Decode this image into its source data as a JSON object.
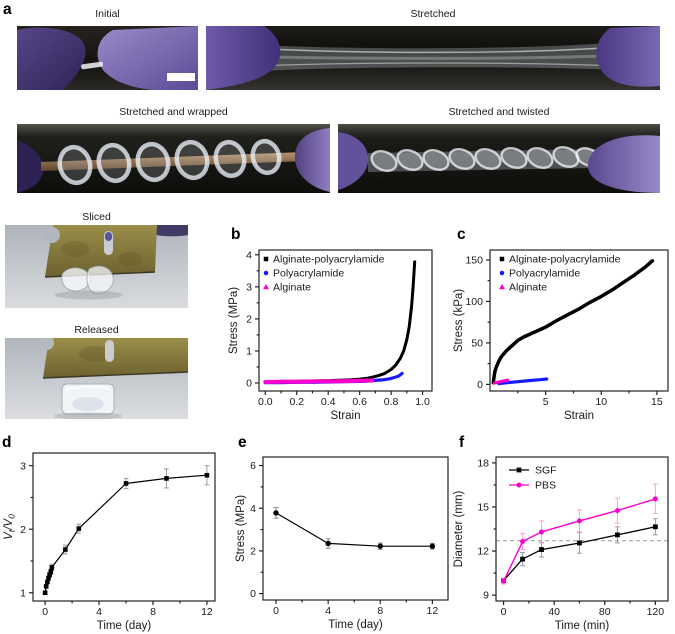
{
  "figure": {
    "panels": {
      "a": "a",
      "b": "b",
      "c": "c",
      "d": "d",
      "e": "e",
      "f": "f"
    },
    "captions": {
      "initial": "Initial",
      "stretched": "Stretched",
      "wrapped": "Stretched and wrapped",
      "twisted": "Stretched and twisted",
      "sliced": "Sliced",
      "released": "Released"
    }
  },
  "colors": {
    "series_black": "#000000",
    "series_blue": "#1a1aff",
    "series_magenta": "#ff00cc",
    "error_gray": "#999999",
    "error_pink": "#ff9ae8",
    "glove_purple": "#6a55a0",
    "refline_gray": "#9a9a9a"
  },
  "chart_data": [
    {
      "panel": "b",
      "type": "line",
      "xlabel": "Strain",
      "ylabel": "Stress (MPa)",
      "xlim": [
        -0.04,
        1.06
      ],
      "ylim": [
        -0.25,
        4.15
      ],
      "xticks": [
        0,
        0.2,
        0.4,
        0.6,
        0.8,
        1.0
      ],
      "xticklabels": [
        "0.0",
        "0.2",
        "0.4",
        "0.6",
        "0.8",
        "1.0"
      ],
      "yticks": [
        0,
        1,
        2,
        3,
        4
      ],
      "xminor": [
        0.1,
        0.3,
        0.5,
        0.7,
        0.9
      ],
      "yminor": [
        0.5,
        1.5,
        2.5,
        3.5
      ],
      "legend": {
        "x": 7,
        "y": 9,
        "style": "marker",
        "dy": 14
      },
      "series": [
        {
          "name": "Alginate-polyacrylamide",
          "color": "#000000",
          "marker": "square",
          "msize": 0,
          "lsize": 4.5,
          "width": 3,
          "x": [
            0,
            0.05,
            0.1,
            0.15,
            0.2,
            0.25,
            0.3,
            0.35,
            0.4,
            0.45,
            0.5,
            0.55,
            0.6,
            0.65,
            0.68,
            0.72,
            0.76,
            0.8,
            0.83,
            0.86,
            0.88,
            0.9,
            0.915,
            0.93,
            0.94,
            0.95
          ],
          "y": [
            0.04,
            0.04,
            0.05,
            0.05,
            0.05,
            0.06,
            0.06,
            0.07,
            0.07,
            0.08,
            0.09,
            0.1,
            0.12,
            0.15,
            0.18,
            0.23,
            0.3,
            0.42,
            0.56,
            0.78,
            1.0,
            1.35,
            1.75,
            2.4,
            3.0,
            3.78
          ]
        },
        {
          "name": "Polyacrylamide",
          "color": "#1a1aff",
          "marker": "circle",
          "msize": 0,
          "lsize": 4.5,
          "width": 3.2,
          "x": [
            0,
            0.1,
            0.2,
            0.3,
            0.4,
            0.5,
            0.6,
            0.65,
            0.7,
            0.75,
            0.79,
            0.82,
            0.845,
            0.86,
            0.87
          ],
          "y": [
            0.01,
            0.01,
            0.02,
            0.02,
            0.03,
            0.04,
            0.05,
            0.06,
            0.08,
            0.1,
            0.13,
            0.17,
            0.21,
            0.26,
            0.3
          ]
        },
        {
          "name": "Alginate",
          "color": "#ff00cc",
          "marker": "triangle",
          "msize": 0,
          "lsize": 5,
          "width": 4,
          "x": [
            0,
            0.1,
            0.2,
            0.3,
            0.4,
            0.5,
            0.6,
            0.68
          ],
          "y": [
            0.03,
            0.04,
            0.04,
            0.05,
            0.05,
            0.06,
            0.07,
            0.08
          ]
        }
      ]
    },
    {
      "panel": "c",
      "type": "line",
      "xlabel": "Strain",
      "ylabel": "Stress (kPa)",
      "xlim": [
        0,
        16
      ],
      "ylim": [
        -8,
        162
      ],
      "xticks": [
        5,
        10,
        15
      ],
      "yticks": [
        0,
        50,
        100,
        150
      ],
      "xminor": [
        2.5,
        7.5,
        12.5
      ],
      "yminor": [
        25,
        75,
        125
      ],
      "legend": {
        "x": 12,
        "y": 9,
        "style": "marker",
        "dy": 14
      },
      "series": [
        {
          "name": "Alginate-polyacrylamide",
          "color": "#000000",
          "marker": "square",
          "msize": 0,
          "lsize": 4.5,
          "width": 3.5,
          "x": [
            0.3,
            0.35,
            0.45,
            0.6,
            0.8,
            1,
            1.5,
            2,
            2.5,
            3,
            3.5,
            4,
            4.5,
            5,
            6,
            7,
            8,
            9,
            10,
            11,
            12,
            13,
            14,
            14.6
          ],
          "y": [
            2,
            8,
            16,
            22,
            28,
            33,
            41,
            47,
            53,
            57,
            60,
            63,
            66,
            69,
            77,
            84,
            91,
            99,
            106,
            114,
            123,
            132,
            142,
            149
          ]
        },
        {
          "name": "Polyacrylamide",
          "color": "#1a1aff",
          "marker": "circle",
          "msize": 0,
          "lsize": 4.5,
          "width": 3.2,
          "x": [
            0.8,
            1.5,
            2.5,
            3.5,
            4.5,
            5.1
          ],
          "y": [
            0.8,
            2,
            3.2,
            4.5,
            5.6,
            6.5
          ]
        },
        {
          "name": "Alginate",
          "color": "#ff00cc",
          "marker": "triangle",
          "msize": 0,
          "lsize": 5,
          "width": 3,
          "x": [
            0.4,
            0.8,
            1.2,
            1.6
          ],
          "y": [
            1.5,
            2.8,
            4,
            5.2
          ]
        }
      ]
    },
    {
      "panel": "d",
      "type": "line",
      "xlabel": "Time (day)",
      "ylabel": "V_t/V_0",
      "ylabel_style": "italic",
      "xlim": [
        -0.9,
        12.6
      ],
      "ylim": [
        0.87,
        3.2
      ],
      "xticks": [
        0,
        4,
        8,
        12
      ],
      "yticks": [
        1,
        2,
        3
      ],
      "xminor": [
        2,
        6,
        10
      ],
      "yminor": [
        1.5,
        2.5
      ],
      "series": [
        {
          "name": "",
          "color": "#000000",
          "marker": "square",
          "msize": 4.6,
          "width": 1.2,
          "err_color": "#9a9a9a",
          "x": [
            0,
            0.08,
            0.17,
            0.25,
            0.33,
            0.42,
            0.5,
            1.5,
            2.5,
            6,
            9,
            12
          ],
          "y": [
            1.0,
            1.1,
            1.17,
            1.23,
            1.28,
            1.33,
            1.4,
            1.68,
            2.01,
            2.72,
            2.8,
            2.85
          ],
          "yerr": [
            0.02,
            0.02,
            0.03,
            0.03,
            0.04,
            0.04,
            0.05,
            0.07,
            0.07,
            0.08,
            0.15,
            0.15
          ]
        }
      ]
    },
    {
      "panel": "e",
      "type": "line",
      "xlabel": "Time (day)",
      "ylabel": "Stress (MPa)",
      "xlim": [
        -1,
        13.2
      ],
      "ylim": [
        -0.3,
        6.4
      ],
      "xticks": [
        0,
        4,
        8,
        12
      ],
      "yticks": [
        0,
        2,
        4,
        6
      ],
      "xminor": [
        2,
        6,
        10
      ],
      "yminor": [
        1,
        3,
        5
      ],
      "series": [
        {
          "name": "",
          "color": "#000000",
          "marker": "circle",
          "msize": 5.4,
          "width": 1.2,
          "err_color": "#8d8d8d",
          "x": [
            0,
            4,
            8,
            12
          ],
          "y": [
            3.78,
            2.35,
            2.22,
            2.22
          ],
          "yerr": [
            0.25,
            0.22,
            0.15,
            0.13
          ]
        }
      ]
    },
    {
      "panel": "f",
      "type": "line",
      "xlabel": "Time (min)",
      "ylabel": "Diameter (mm)",
      "xlim": [
        -6,
        130
      ],
      "ylim": [
        8.6,
        18.4
      ],
      "xticks": [
        0,
        40,
        80,
        120
      ],
      "yticks": [
        9,
        12,
        15,
        18
      ],
      "xminor": [
        20,
        60,
        100
      ],
      "yminor": [
        10.5,
        13.5,
        16.5
      ],
      "refline": {
        "y": 12.7
      },
      "legend": {
        "x": 13,
        "y": 13,
        "style": "line",
        "dy": 15
      },
      "series": [
        {
          "name": "SGF",
          "color": "#000000",
          "marker": "square",
          "msize": 4.8,
          "lsize": 4.8,
          "width": 1.3,
          "err_color": "#9a9a9a",
          "x": [
            0,
            15,
            30,
            60,
            90,
            120
          ],
          "y": [
            10.0,
            11.45,
            12.1,
            12.55,
            13.1,
            13.65
          ],
          "yerr": [
            0.15,
            0.45,
            0.5,
            0.7,
            0.55,
            0.55
          ]
        },
        {
          "name": "PBS",
          "color": "#ff00cc",
          "marker": "circle",
          "msize": 5,
          "lsize": 5,
          "width": 1.4,
          "err_color": "#ff9ae8",
          "x": [
            0,
            15,
            30,
            60,
            90,
            120
          ],
          "y": [
            9.95,
            12.65,
            13.3,
            14.05,
            14.75,
            15.55
          ],
          "yerr": [
            0.2,
            0.55,
            0.75,
            0.75,
            0.85,
            1.0
          ]
        }
      ]
    }
  ]
}
